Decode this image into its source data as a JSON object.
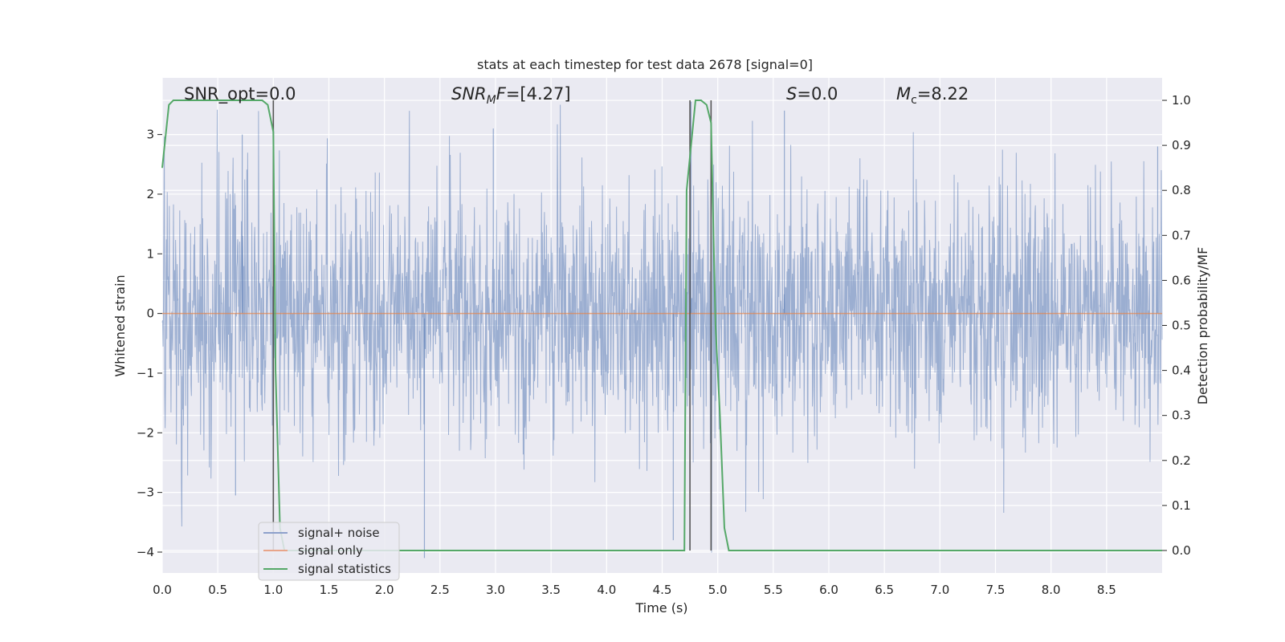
{
  "chart_data": {
    "type": "line",
    "title": "stats at each timestep for test data 2678 [signal=0]",
    "xlabel": "Time (s)",
    "ylabel": "Whitened strain",
    "y2label": "Detection probability/MF",
    "xlim": [
      0,
      9.0
    ],
    "ylim": [
      -4.35,
      3.95
    ],
    "y2lim": [
      -0.05,
      1.05
    ],
    "x_ticks": [
      "0.0",
      "0.5",
      "1.0",
      "1.5",
      "2.0",
      "2.5",
      "3.0",
      "3.5",
      "4.0",
      "4.5",
      "5.0",
      "5.5",
      "6.0",
      "6.5",
      "7.0",
      "7.5",
      "8.0",
      "8.5"
    ],
    "y_ticks": [
      "3",
      "2",
      "1",
      "0",
      "−1",
      "−2",
      "−3",
      "−4"
    ],
    "y2_ticks": [
      "1.0",
      "0.9",
      "0.8",
      "0.7",
      "0.6",
      "0.5",
      "0.4",
      "0.3",
      "0.2",
      "0.1",
      "0.0"
    ],
    "grid": true,
    "legend_position": "lower-left",
    "series": [
      {
        "name": "signal+ noise",
        "axis": "left",
        "color": "#4c72b0",
        "noise_description": "white noise, amplitude roughly ±3.5 around 0 across 0–9 s",
        "sample_peaks": [
          {
            "x": 0.72,
            "y": 3.0
          },
          {
            "x": 2.98,
            "y": 3.1
          },
          {
            "x": 4.76,
            "y": 3.55
          },
          {
            "x": 5.6,
            "y": 3.4
          },
          {
            "x": 2.36,
            "y": -4.1
          },
          {
            "x": 4.6,
            "y": -3.8
          },
          {
            "x": 0.66,
            "y": -3.05
          },
          {
            "x": 8.96,
            "y": 2.8
          }
        ]
      },
      {
        "name": "signal only",
        "axis": "left",
        "color": "#dd8452",
        "x": [
          0,
          9.0
        ],
        "y": [
          0,
          0
        ]
      },
      {
        "name": "signal statistics",
        "axis": "right",
        "color": "#55a868",
        "x": [
          0.0,
          0.06,
          0.1,
          0.2,
          0.5,
          0.7,
          0.9,
          0.95,
          1.0,
          1.02,
          1.06,
          1.1,
          2.0,
          3.0,
          4.0,
          4.6,
          4.65,
          4.7,
          4.72,
          4.8,
          4.85,
          4.9,
          4.94,
          4.98,
          5.02,
          5.06,
          5.1,
          6.0,
          7.0,
          8.0,
          9.0
        ],
        "y": [
          0.85,
          0.99,
          1.0,
          1.0,
          1.0,
          1.0,
          1.0,
          0.99,
          0.93,
          0.4,
          0.05,
          0.0,
          0.0,
          0.0,
          0.0,
          0.0,
          0.0,
          0.0,
          0.8,
          1.0,
          1.0,
          0.99,
          0.95,
          0.5,
          0.3,
          0.05,
          0.0,
          0.0,
          0.0,
          0.0,
          0.0
        ]
      }
    ],
    "vlines": [
      {
        "x": 1.0,
        "color": "#555555"
      },
      {
        "x": 4.75,
        "color": "#555555"
      },
      {
        "x": 4.94,
        "color": "#555555"
      }
    ],
    "annotations": [
      {
        "id": "snr-opt",
        "text": "SNR_opt=0.0"
      },
      {
        "id": "snr-mf",
        "text": "SNR_MF=[4.27]"
      },
      {
        "id": "s-val",
        "text": "S=0.0"
      },
      {
        "id": "mc-val",
        "text": "M_c=8.22"
      }
    ],
    "legend": [
      "signal+ noise",
      "signal only",
      "signal statistics"
    ]
  }
}
